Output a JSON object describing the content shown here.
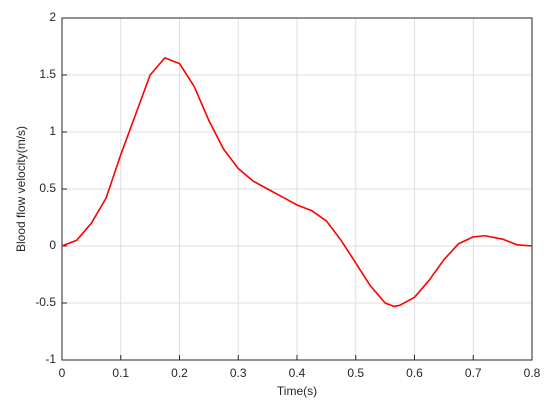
{
  "chart_data": {
    "type": "line",
    "x_label": "Time(s)",
    "y_label": "Blood flow velocity(m/s)",
    "x": [
      0,
      0.025,
      0.05,
      0.075,
      0.1,
      0.125,
      0.15,
      0.175,
      0.2,
      0.225,
      0.25,
      0.275,
      0.3,
      0.325,
      0.35,
      0.375,
      0.4,
      0.425,
      0.45,
      0.475,
      0.5,
      0.525,
      0.55,
      0.565,
      0.575,
      0.6,
      0.625,
      0.65,
      0.675,
      0.7,
      0.72,
      0.75,
      0.775,
      0.8
    ],
    "series": [
      {
        "color": "#ff0000",
        "values": [
          0,
          0.05,
          0.2,
          0.42,
          0.8,
          1.15,
          1.5,
          1.65,
          1.6,
          1.4,
          1.1,
          0.85,
          0.68,
          0.57,
          0.5,
          0.43,
          0.36,
          0.31,
          0.22,
          0.05,
          -0.15,
          -0.35,
          -0.5,
          -0.53,
          -0.52,
          -0.45,
          -0.3,
          -0.12,
          0.02,
          0.08,
          0.09,
          0.06,
          0.01,
          0
        ]
      }
    ],
    "xlim": [
      0,
      0.8
    ],
    "xticks": [
      0,
      0.1,
      0.2,
      0.3,
      0.4,
      0.5,
      0.6,
      0.7,
      0.8
    ],
    "ylim": [
      -1,
      2
    ],
    "yticks": [
      -1,
      -0.5,
      0,
      0.5,
      1,
      1.5,
      2
    ],
    "grid": true
  }
}
